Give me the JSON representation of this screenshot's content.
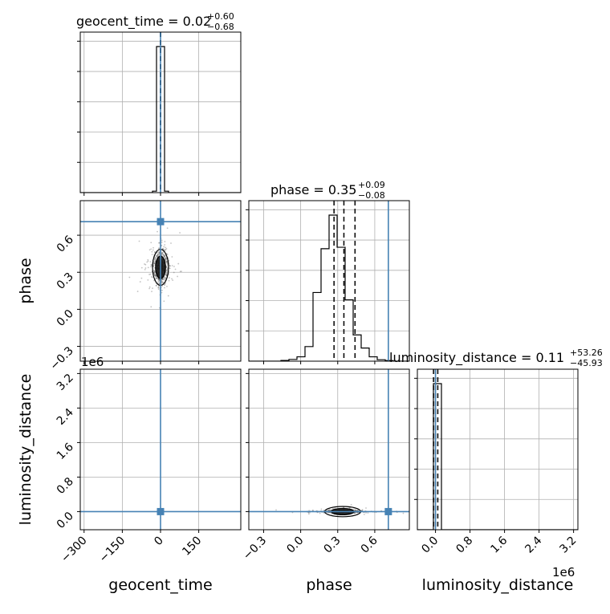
{
  "chart_data": {
    "type": "corner",
    "parameters": [
      "geocent_time",
      "phase",
      "luminosity_distance"
    ],
    "colors": {
      "truth": "#4682b4",
      "hist": "#000000",
      "grid": "#b0b0b0",
      "scatter": "#555555"
    },
    "titles": {
      "geocent_time": {
        "label": "geocent_time = 0.02",
        "plus": "+0.60",
        "minus": "−0.68"
      },
      "phase": {
        "label": "phase = 0.35",
        "plus": "+0.09",
        "minus": "−0.08"
      },
      "luminosity_distance": {
        "label": "luminosity_distance = 0.11",
        "plus": "+53.26",
        "minus": "−45.93"
      }
    },
    "axis_labels": {
      "geocent_time": "geocent_time",
      "phase": "phase",
      "luminosity_distance": "luminosity_distance"
    },
    "offset_texts": {
      "ld_y": "1e6",
      "ld_x": "1e6"
    },
    "ranges": {
      "geocent_time": [
        -315,
        315
      ],
      "phase": [
        -0.42,
        0.88
      ],
      "luminosity_distance": [
        -0.42,
        3.3
      ]
    },
    "ticks": {
      "geocent_time": [
        {
          "v": -300,
          "label": "−300"
        },
        {
          "v": -150,
          "label": "−150"
        },
        {
          "v": 0,
          "label": "0"
        },
        {
          "v": 150,
          "label": "150"
        }
      ],
      "phase": [
        {
          "v": -0.3,
          "label": "−0.3"
        },
        {
          "v": 0.0,
          "label": "0.0"
        },
        {
          "v": 0.3,
          "label": "0.3"
        },
        {
          "v": 0.6,
          "label": "0.6"
        }
      ],
      "luminosity_distance": [
        {
          "v": 0.0,
          "label": "0.0"
        },
        {
          "v": 0.8,
          "label": "0.8"
        },
        {
          "v": 1.6,
          "label": "1.6"
        },
        {
          "v": 2.4,
          "label": "2.4"
        },
        {
          "v": 3.2,
          "label": "3.2"
        }
      ]
    },
    "truths": {
      "geocent_time": 0,
      "phase": 0.71,
      "luminosity_distance": 0.0
    },
    "quantiles": {
      "geocent_time": [
        -0.66,
        0.02,
        0.62
      ],
      "phase": [
        0.27,
        0.35,
        0.44
      ],
      "luminosity_distance": [
        -0.0459,
        0.0001,
        0.0534
      ]
    },
    "histograms": {
      "geocent_time": {
        "edges": [
          -315,
          -283.5,
          -252,
          -220.5,
          -189,
          -157.5,
          -126,
          -94.5,
          -63,
          -31.5,
          -15.75,
          0,
          15.75,
          31.5,
          63,
          94.5,
          126,
          157.5,
          189,
          220.5,
          252,
          283.5,
          315
        ],
        "counts": [
          0,
          0,
          0,
          0,
          0,
          0,
          0,
          0,
          0,
          0.01,
          1.0,
          1.0,
          0.01,
          0,
          0,
          0,
          0,
          0,
          0,
          0,
          0,
          0
        ]
      },
      "phase": {
        "edges": [
          -0.42,
          -0.355,
          -0.29,
          -0.225,
          -0.16,
          -0.095,
          -0.03,
          0.035,
          0.1,
          0.165,
          0.23,
          0.295,
          0.36,
          0.425,
          0.49,
          0.555,
          0.62,
          0.685,
          0.75,
          0.815,
          0.88
        ],
        "counts": [
          0,
          0,
          0,
          0,
          0.005,
          0.012,
          0.03,
          0.1,
          0.47,
          0.77,
          1.0,
          0.78,
          0.42,
          0.18,
          0.09,
          0.03,
          0.01,
          0.004,
          0,
          0
        ]
      },
      "luminosity_distance": {
        "edges": [
          -0.42,
          -0.234,
          -0.048,
          0.138,
          0.324,
          0.51,
          0.696,
          0.882,
          1.068,
          1.254,
          1.44,
          1.626,
          1.812,
          1.998,
          2.184,
          2.37,
          2.556,
          2.742,
          2.928,
          3.114,
          3.3
        ],
        "counts": [
          0,
          0,
          1.0,
          0,
          0,
          0,
          0,
          0,
          0,
          0,
          0,
          0,
          0,
          0,
          0,
          0,
          0,
          0,
          0,
          0
        ]
      }
    },
    "scatter_spread": {
      "phase_vs_geocent_time": {
        "x_center": 0,
        "x_sd": 15,
        "y_center": 0.34,
        "y_sd": 0.07
      },
      "ld_vs_phase": {
        "x_center": 0.34,
        "x_sd": 0.07,
        "y_center": 0.0,
        "y_sd": 0.02
      }
    },
    "grid": true
  }
}
